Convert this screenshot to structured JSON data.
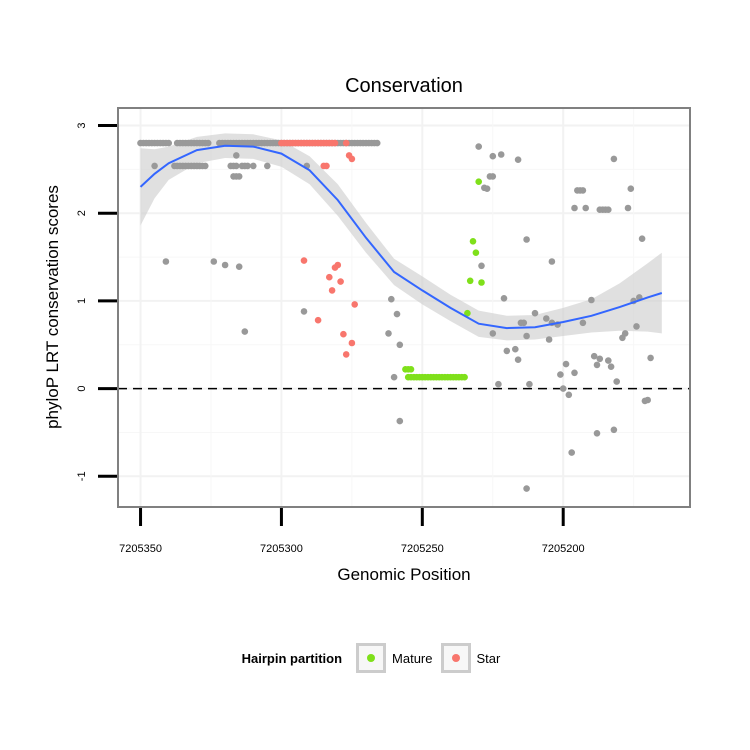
{
  "chart_data": {
    "type": "scatter",
    "title": "Conservation",
    "xlabel": "Genomic Position",
    "ylabel": "phyloP LRT conservation scores",
    "xlim": [
      7205358,
      7205155
    ],
    "ylim": [
      -1.35,
      3.2
    ],
    "x_reversed": true,
    "x_ticks": [
      7205350,
      7205300,
      7205250,
      7205200
    ],
    "x_tick_labels": [
      "7205350",
      "7205300",
      "7205250",
      "7205200"
    ],
    "y_ticks": [
      -1,
      0,
      1,
      2,
      3
    ],
    "y_tick_labels": [
      "-1",
      "0",
      "1",
      "2",
      "3"
    ],
    "hline": 0,
    "grid": true,
    "colors": {
      "Other": "#999999",
      "Mature": "#7FE01A",
      "Star": "#F8766D",
      "smooth": "#3366FF",
      "ribbon": "#cccccc"
    },
    "series": [
      {
        "name": "Other",
        "legend": false,
        "points": [
          [
            7205350,
            2.8
          ],
          [
            7205349,
            2.8
          ],
          [
            7205348,
            2.8
          ],
          [
            7205347,
            2.8
          ],
          [
            7205346,
            2.8
          ],
          [
            7205345,
            2.8
          ],
          [
            7205344,
            2.8
          ],
          [
            7205343,
            2.8
          ],
          [
            7205342,
            2.8
          ],
          [
            7205341,
            2.8
          ],
          [
            7205340,
            2.8
          ],
          [
            7205337,
            2.8
          ],
          [
            7205336,
            2.8
          ],
          [
            7205335,
            2.8
          ],
          [
            7205334,
            2.8
          ],
          [
            7205333,
            2.8
          ],
          [
            7205332,
            2.8
          ],
          [
            7205331,
            2.8
          ],
          [
            7205330,
            2.8
          ],
          [
            7205329,
            2.8
          ],
          [
            7205328,
            2.8
          ],
          [
            7205327,
            2.8
          ],
          [
            7205326,
            2.8
          ],
          [
            7205322,
            2.8
          ],
          [
            7205321,
            2.8
          ],
          [
            7205320,
            2.8
          ],
          [
            7205319,
            2.8
          ],
          [
            7205318,
            2.8
          ],
          [
            7205317,
            2.8
          ],
          [
            7205316,
            2.8
          ],
          [
            7205315,
            2.8
          ],
          [
            7205314,
            2.8
          ],
          [
            7205313,
            2.8
          ],
          [
            7205312,
            2.8
          ],
          [
            7205311,
            2.8
          ],
          [
            7205310,
            2.8
          ],
          [
            7205309,
            2.8
          ],
          [
            7205308,
            2.8
          ],
          [
            7205307,
            2.8
          ],
          [
            7205306,
            2.8
          ],
          [
            7205305,
            2.8
          ],
          [
            7205304,
            2.8
          ],
          [
            7205303,
            2.8
          ],
          [
            7205302,
            2.8
          ],
          [
            7205301,
            2.8
          ],
          [
            7205300,
            2.8
          ],
          [
            7205299,
            2.8
          ],
          [
            7205298,
            2.8
          ],
          [
            7205297,
            2.8
          ],
          [
            7205296,
            2.8
          ],
          [
            7205295,
            2.8
          ],
          [
            7205294,
            2.8
          ],
          [
            7205293,
            2.8
          ],
          [
            7205292,
            2.8
          ],
          [
            7205291,
            2.8
          ],
          [
            7205290,
            2.8
          ],
          [
            7205289,
            2.8
          ],
          [
            7205288,
            2.8
          ],
          [
            7205287,
            2.8
          ],
          [
            7205286,
            2.8
          ],
          [
            7205285,
            2.8
          ],
          [
            7205284,
            2.8
          ],
          [
            7205283,
            2.8
          ],
          [
            7205282,
            2.8
          ],
          [
            7205281,
            2.8
          ],
          [
            7205280,
            2.8
          ],
          [
            7205279,
            2.8
          ],
          [
            7205278,
            2.8
          ],
          [
            7205277,
            2.8
          ],
          [
            7205276,
            2.8
          ],
          [
            7205275,
            2.8
          ],
          [
            7205274,
            2.8
          ],
          [
            7205273,
            2.8
          ],
          [
            7205272,
            2.8
          ],
          [
            7205271,
            2.8
          ],
          [
            7205270,
            2.8
          ],
          [
            7205269,
            2.8
          ],
          [
            7205268,
            2.8
          ],
          [
            7205267,
            2.8
          ],
          [
            7205266,
            2.8
          ],
          [
            7205345,
            2.54
          ],
          [
            7205338,
            2.54
          ],
          [
            7205337,
            2.54
          ],
          [
            7205336,
            2.54
          ],
          [
            7205335,
            2.54
          ],
          [
            7205334,
            2.54
          ],
          [
            7205333,
            2.54
          ],
          [
            7205332,
            2.54
          ],
          [
            7205331,
            2.54
          ],
          [
            7205330,
            2.54
          ],
          [
            7205329,
            2.54
          ],
          [
            7205328,
            2.54
          ],
          [
            7205327,
            2.54
          ],
          [
            7205318,
            2.54
          ],
          [
            7205317,
            2.54
          ],
          [
            7205316,
            2.54
          ],
          [
            7205314,
            2.54
          ],
          [
            7205313,
            2.54
          ],
          [
            7205312,
            2.54
          ],
          [
            7205310,
            2.54
          ],
          [
            7205305,
            2.54
          ],
          [
            7205291,
            2.54
          ],
          [
            7205316,
            2.66
          ],
          [
            7205317,
            2.42
          ],
          [
            7205316,
            2.42
          ],
          [
            7205315,
            2.42
          ],
          [
            7205341,
            1.45
          ],
          [
            7205324,
            1.45
          ],
          [
            7205320,
            1.41
          ],
          [
            7205315,
            1.39
          ],
          [
            7205313,
            0.65
          ],
          [
            7205292,
            0.88
          ],
          [
            7205261,
            1.02
          ],
          [
            7205259,
            0.85
          ],
          [
            7205262,
            0.63
          ],
          [
            7205258,
            0.5
          ],
          [
            7205260,
            0.13
          ],
          [
            7205258,
            -0.37
          ],
          [
            7205230,
            2.76
          ],
          [
            7205225,
            2.65
          ],
          [
            7205222,
            2.67
          ],
          [
            7205216,
            2.61
          ],
          [
            7205226,
            2.42
          ],
          [
            7205225,
            2.42
          ],
          [
            7205228,
            2.29
          ],
          [
            7205227,
            2.28
          ],
          [
            7205213,
            1.7
          ],
          [
            7205229,
            1.4
          ],
          [
            7205221,
            1.03
          ],
          [
            7205225,
            0.63
          ],
          [
            7205220,
            0.43
          ],
          [
            7205216,
            0.33
          ],
          [
            7205217,
            0.45
          ],
          [
            7205215,
            0.75
          ],
          [
            7205213,
            0.6
          ],
          [
            7205210,
            0.86
          ],
          [
            7205212,
            0.05
          ],
          [
            7205214,
            0.75
          ],
          [
            7205223,
            0.05
          ],
          [
            7205204,
            1.45
          ],
          [
            7205206,
            0.8
          ],
          [
            7205204,
            0.75
          ],
          [
            7205205,
            0.56
          ],
          [
            7205202,
            0.73
          ],
          [
            7205201,
            0.16
          ],
          [
            7205200,
            0.0
          ],
          [
            7205198,
            -0.07
          ],
          [
            7205199,
            0.28
          ],
          [
            7205196,
            0.18
          ],
          [
            7205197,
            -0.73
          ],
          [
            7205213,
            -1.14
          ],
          [
            7205195,
            2.26
          ],
          [
            7205194,
            2.26
          ],
          [
            7205193,
            2.26
          ],
          [
            7205196,
            2.06
          ],
          [
            7205192,
            2.06
          ],
          [
            7205187,
            2.04
          ],
          [
            7205186,
            2.04
          ],
          [
            7205185,
            2.04
          ],
          [
            7205184,
            2.04
          ],
          [
            7205182,
            2.62
          ],
          [
            7205193,
            0.75
          ],
          [
            7205190,
            1.01
          ],
          [
            7205189,
            0.37
          ],
          [
            7205187,
            0.34
          ],
          [
            7205188,
            0.27
          ],
          [
            7205184,
            0.32
          ],
          [
            7205183,
            0.25
          ],
          [
            7205182,
            -0.47
          ],
          [
            7205181,
            0.08
          ],
          [
            7205188,
            -0.51
          ],
          [
            7205179,
            0.58
          ],
          [
            7205178,
            0.63
          ],
          [
            7205176,
            2.28
          ],
          [
            7205175,
            1.0
          ],
          [
            7205174,
            0.71
          ],
          [
            7205173,
            1.04
          ],
          [
            7205172,
            1.71
          ],
          [
            7205171,
            -0.14
          ],
          [
            7205170,
            -0.13
          ],
          [
            7205169,
            0.35
          ],
          [
            7205177,
            2.06
          ]
        ]
      },
      {
        "name": "Star",
        "legend": true,
        "points": [
          [
            7205300,
            2.8
          ],
          [
            7205299,
            2.8
          ],
          [
            7205298,
            2.8
          ],
          [
            7205297,
            2.8
          ],
          [
            7205296,
            2.8
          ],
          [
            7205295,
            2.8
          ],
          [
            7205294,
            2.8
          ],
          [
            7205293,
            2.8
          ],
          [
            7205292,
            2.8
          ],
          [
            7205291,
            2.8
          ],
          [
            7205290,
            2.8
          ],
          [
            7205289,
            2.8
          ],
          [
            7205288,
            2.8
          ],
          [
            7205287,
            2.8
          ],
          [
            7205286,
            2.8
          ],
          [
            7205285,
            2.8
          ],
          [
            7205284,
            2.8
          ],
          [
            7205283,
            2.8
          ],
          [
            7205282,
            2.8
          ],
          [
            7205281,
            2.8
          ],
          [
            7205277,
            2.8
          ],
          [
            7205276,
            2.66
          ],
          [
            7205275,
            2.62
          ],
          [
            7205285,
            2.54
          ],
          [
            7205284,
            2.54
          ],
          [
            7205292,
            1.46
          ],
          [
            7205283,
            1.27
          ],
          [
            7205279,
            1.22
          ],
          [
            7205281,
            1.38
          ],
          [
            7205280,
            1.41
          ],
          [
            7205282,
            1.12
          ],
          [
            7205274,
            0.96
          ],
          [
            7205287,
            0.78
          ],
          [
            7205278,
            0.62
          ],
          [
            7205275,
            0.52
          ],
          [
            7205277,
            0.39
          ]
        ]
      },
      {
        "name": "Mature",
        "legend": true,
        "points": [
          [
            7205230,
            2.36
          ],
          [
            7205232,
            1.68
          ],
          [
            7205231,
            1.55
          ],
          [
            7205233,
            1.23
          ],
          [
            7205229,
            1.21
          ],
          [
            7205234,
            0.86
          ],
          [
            7205256,
            0.22
          ],
          [
            7205255,
            0.22
          ],
          [
            7205254,
            0.22
          ],
          [
            7205255,
            0.13
          ],
          [
            7205254,
            0.13
          ],
          [
            7205253,
            0.13
          ],
          [
            7205252,
            0.13
          ],
          [
            7205251,
            0.13
          ],
          [
            7205250,
            0.13
          ],
          [
            7205249,
            0.13
          ],
          [
            7205248,
            0.13
          ],
          [
            7205247,
            0.13
          ],
          [
            7205246,
            0.13
          ],
          [
            7205245,
            0.13
          ],
          [
            7205244,
            0.13
          ],
          [
            7205243,
            0.13
          ],
          [
            7205242,
            0.13
          ],
          [
            7205241,
            0.13
          ],
          [
            7205240,
            0.13
          ],
          [
            7205239,
            0.13
          ],
          [
            7205238,
            0.13
          ],
          [
            7205237,
            0.13
          ],
          [
            7205236,
            0.13
          ],
          [
            7205235,
            0.13
          ]
        ]
      }
    ],
    "smooth": [
      [
        7205350,
        2.3,
        1.86,
        2.74
      ],
      [
        7205345,
        2.45,
        2.17,
        2.73
      ],
      [
        7205340,
        2.57,
        2.38,
        2.76
      ],
      [
        7205330,
        2.72,
        2.57,
        2.87
      ],
      [
        7205320,
        2.77,
        2.63,
        2.91
      ],
      [
        7205310,
        2.76,
        2.62,
        2.9
      ],
      [
        7205300,
        2.68,
        2.53,
        2.83
      ],
      [
        7205290,
        2.49,
        2.33,
        2.65
      ],
      [
        7205280,
        2.15,
        1.97,
        2.33
      ],
      [
        7205270,
        1.72,
        1.55,
        1.89
      ],
      [
        7205260,
        1.33,
        1.18,
        1.48
      ],
      [
        7205250,
        1.12,
        0.96,
        1.28
      ],
      [
        7205240,
        0.92,
        0.77,
        1.07
      ],
      [
        7205230,
        0.74,
        0.59,
        0.89
      ],
      [
        7205220,
        0.69,
        0.55,
        0.83
      ],
      [
        7205210,
        0.7,
        0.56,
        0.84
      ],
      [
        7205200,
        0.76,
        0.6,
        0.92
      ],
      [
        7205190,
        0.83,
        0.64,
        1.02
      ],
      [
        7205180,
        0.93,
        0.66,
        1.2
      ],
      [
        7205170,
        1.04,
        0.65,
        1.43
      ],
      [
        7205165,
        1.09,
        0.63,
        1.55
      ]
    ],
    "legend": {
      "title": "Hairpin partition",
      "items": [
        "Mature",
        "Star"
      ],
      "position": "bottom"
    }
  }
}
